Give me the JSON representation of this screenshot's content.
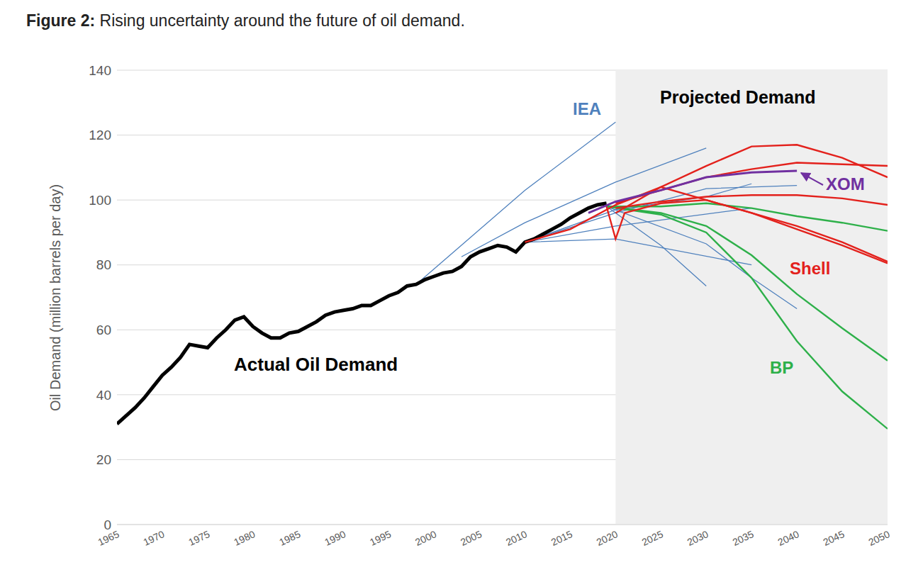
{
  "chart_data": {
    "type": "line",
    "title": "Figure 2: Rising uncertainty around the future of oil demand.",
    "y_label": "Oil Demand (million barrels per day)",
    "xlim": [
      1965,
      2050
    ],
    "xticks": [
      1965,
      1970,
      1975,
      1980,
      1985,
      1990,
      1995,
      2000,
      2005,
      2010,
      2015,
      2020,
      2025,
      2030,
      2035,
      2040,
      2045,
      2050
    ],
    "ylim": [
      0,
      140
    ],
    "yticks": [
      0,
      20,
      40,
      60,
      80,
      100,
      120,
      140
    ],
    "grid": true,
    "shaded_region": {
      "x": [
        2020,
        2050
      ],
      "label": "Projected Demand"
    },
    "series": [
      {
        "name": "Actual Oil Demand",
        "color": "#000000",
        "lines": [
          {
            "x": [
              1965,
              1966,
              1967,
              1968,
              1969,
              1970,
              1971,
              1972,
              1973,
              1974,
              1975,
              1976,
              1977,
              1978,
              1979,
              1980,
              1981,
              1982,
              1983,
              1984,
              1985,
              1986,
              1987,
              1988,
              1989,
              1990,
              1991,
              1992,
              1993,
              1994,
              1995,
              1996,
              1997,
              1998,
              1999,
              2000,
              2001,
              2002,
              2003,
              2004,
              2005,
              2006,
              2007,
              2008,
              2009,
              2010,
              2011,
              2012,
              2013,
              2014,
              2015,
              2016,
              2017,
              2018,
              2019
            ],
            "values": [
              31,
              33.5,
              36,
              39,
              42.5,
              46,
              48.5,
              51.5,
              55.5,
              55,
              54.5,
              57.5,
              60,
              63,
              64,
              61,
              59,
              57.5,
              57.5,
              59,
              59.5,
              61,
              62.5,
              64.5,
              65.5,
              66,
              66.5,
              67.5,
              67.5,
              69,
              70.5,
              71.5,
              73.5,
              74,
              75.5,
              76.5,
              77.5,
              78,
              79.5,
              82.5,
              84,
              85,
              86,
              85.5,
              84,
              87,
              88,
              89.5,
              91,
              92.5,
              94.5,
              96,
              97.5,
              98.5,
              99
            ]
          }
        ]
      },
      {
        "name": "IEA",
        "color": "#4f81bd",
        "lines": [
          {
            "x": [
              1998,
              2010,
              2020
            ],
            "values": [
              74,
              103,
              124
            ]
          },
          {
            "x": [
              2003,
              2010,
              2020,
              2030
            ],
            "values": [
              82.5,
              93,
              105.5,
              116
            ]
          },
          {
            "x": [
              2010,
              2020,
              2030,
              2040
            ],
            "values": [
              87,
              96,
              103.5,
              104.5
            ]
          },
          {
            "x": [
              2010,
              2020,
              2030,
              2035
            ],
            "values": [
              87,
              97,
              101,
              105
            ]
          },
          {
            "x": [
              2010,
              2020,
              2035
            ],
            "values": [
              87,
              92,
              97.5
            ]
          },
          {
            "x": [
              2010,
              2020,
              2035
            ],
            "values": [
              87,
              88,
              80
            ]
          },
          {
            "x": [
              2019,
              2025,
              2030
            ],
            "values": [
              98,
              86,
              73.5
            ]
          },
          {
            "x": [
              2019,
              2030,
              2035,
              2040
            ],
            "values": [
              98,
              86.5,
              76,
              66.5
            ]
          }
        ]
      },
      {
        "name": "Shell",
        "color": "#e3211c",
        "lines": [
          {
            "x": [
              2010,
              2015,
              2020,
              2025,
              2030,
              2035,
              2040,
              2045,
              2050
            ],
            "values": [
              87,
              91,
              98.5,
              104,
              110.5,
              116.5,
              117,
              113,
              107
            ]
          },
          {
            "x": [
              2020,
              2025,
              2030,
              2035,
              2040,
              2045,
              2050
            ],
            "values": [
              99,
              103,
              107,
              109.5,
              111.5,
              111,
              110.5
            ]
          },
          {
            "x": [
              2020,
              2025,
              2030,
              2035,
              2040,
              2045,
              2050
            ],
            "values": [
              97.5,
              99.5,
              101,
              101.5,
              101.5,
              100.5,
              98.5
            ]
          },
          {
            "x": [
              2019,
              2020,
              2021,
              2025,
              2030,
              2035,
              2040,
              2045,
              2050
            ],
            "values": [
              98,
              88,
              96,
              99,
              100,
              96,
              91,
              86,
              80.5
            ]
          },
          {
            "x": [
              2020,
              2025,
              2030,
              2035,
              2040,
              2045,
              2050
            ],
            "values": [
              96,
              104,
              100,
              96,
              92,
              87,
              81
            ]
          }
        ]
      },
      {
        "name": "BP",
        "color": "#2eb04a",
        "lines": [
          {
            "x": [
              2019,
              2025,
              2030,
              2035,
              2040,
              2045,
              2050
            ],
            "values": [
              98,
              96,
              92,
              83,
              71,
              60.5,
              50.5
            ]
          },
          {
            "x": [
              2019,
              2025,
              2030,
              2035,
              2040,
              2045,
              2050
            ],
            "values": [
              98,
              95.5,
              90,
              76,
              56.5,
              41,
              29.5
            ]
          },
          {
            "x": [
              2019,
              2025,
              2030,
              2035,
              2040,
              2045,
              2050
            ],
            "values": [
              98,
              98,
              99,
              97.5,
              95,
              93,
              90.5
            ]
          }
        ]
      },
      {
        "name": "XOM",
        "color": "#7030a0",
        "lines": [
          {
            "x": [
              2017,
              2020,
              2025,
              2030,
              2035,
              2040
            ],
            "values": [
              96,
              99.5,
              103,
              107,
              108.5,
              109
            ]
          }
        ]
      }
    ]
  }
}
